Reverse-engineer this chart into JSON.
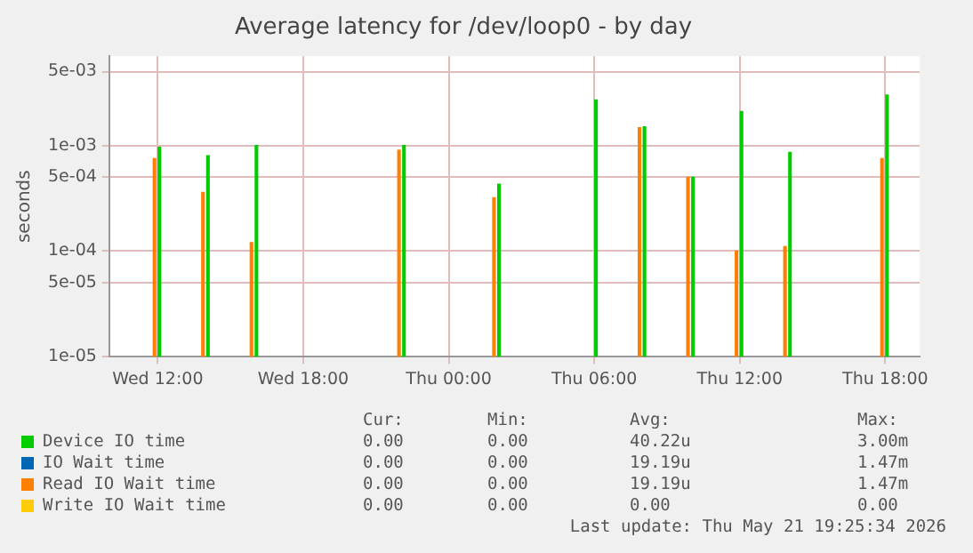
{
  "chart_data": {
    "type": "bar",
    "title": "Average latency for /dev/loop0 - by day",
    "ylabel": "seconds",
    "x": [
      "2026-05-20T11:55",
      "2026-05-20T13:55",
      "2026-05-20T15:55",
      "2026-05-20T22:00",
      "2026-05-21T01:55",
      "2026-05-21T05:55",
      "2026-05-21T07:55",
      "2026-05-21T09:55",
      "2026-05-21T11:55",
      "2026-05-21T13:55",
      "2026-05-21T17:55"
    ],
    "series": [
      {
        "name": "Device IO time",
        "color": "#00cc00",
        "values": [
          0.00096,
          0.0008,
          0.001,
          0.001,
          0.00043,
          0.0027,
          0.0015,
          0.0005,
          0.0021,
          0.00086,
          0.003
        ]
      },
      {
        "name": "IO Wait time",
        "color": "#0066b3",
        "values": [
          null,
          null,
          null,
          null,
          null,
          null,
          null,
          null,
          null,
          null,
          null
        ]
      },
      {
        "name": "Read IO Wait time",
        "color": "#ff8000",
        "values": [
          0.00075,
          0.00036,
          0.00012,
          0.0009,
          0.00032,
          null,
          0.00147,
          0.0005,
          0.0001,
          0.00011,
          0.00075
        ]
      },
      {
        "name": "Write IO Wait time",
        "color": "#ffcc00",
        "values": [
          null,
          null,
          null,
          null,
          null,
          null,
          null,
          null,
          null,
          null,
          null
        ]
      }
    ],
    "xlim": [
      "2026-05-20T10:00",
      "2026-05-21T19:25"
    ],
    "xticks": [
      {
        "value": "2026-05-20T12:00",
        "label": "Wed 12:00"
      },
      {
        "value": "2026-05-20T18:00",
        "label": "Wed 18:00"
      },
      {
        "value": "2026-05-21T00:00",
        "label": "Thu 00:00"
      },
      {
        "value": "2026-05-21T06:00",
        "label": "Thu 06:00"
      },
      {
        "value": "2026-05-21T12:00",
        "label": "Thu 12:00"
      },
      {
        "value": "2026-05-21T18:00",
        "label": "Thu 18:00"
      }
    ],
    "ylim": [
      1e-05,
      0.007
    ],
    "yticks": [
      {
        "value": 1e-05,
        "label": "1e-05"
      },
      {
        "value": 5e-05,
        "label": "5e-05"
      },
      {
        "value": 0.0001,
        "label": "1e-04"
      },
      {
        "value": 0.0005,
        "label": "5e-04"
      },
      {
        "value": 0.001,
        "label": "1e-03"
      },
      {
        "value": 0.005,
        "label": "5e-03"
      }
    ],
    "log": "y",
    "grid": true,
    "legend": "bottom",
    "annotations": [
      "Cur:",
      "Min:",
      "Avg:",
      "Max:",
      "0.00",
      "0.00",
      "40.22u",
      "3.00m",
      "0.00",
      "0.00",
      "19.19u",
      "1.47m",
      "0.00",
      "0.00",
      "19.19u",
      "1.47m",
      "0.00",
      "0.00",
      "0.00",
      "0.00",
      "Last update: Thu May 21 19:25:34 2026"
    ]
  }
}
